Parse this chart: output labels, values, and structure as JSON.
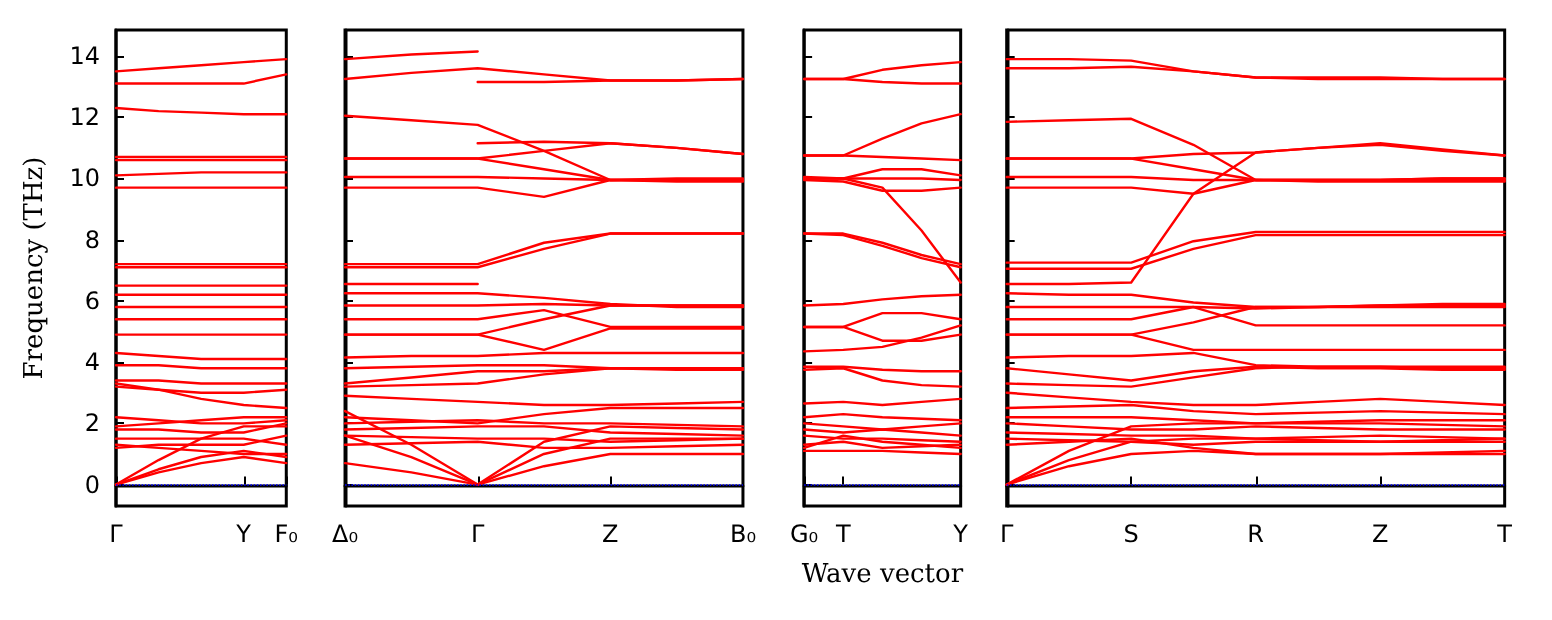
{
  "chart_data": [
    {
      "type": "line",
      "ylabel": "Frequency (THz)",
      "marker": "none",
      "line_style": "solid",
      "ylim": [
        -0.7,
        14.85
      ],
      "yticks": [
        0,
        2,
        4,
        6,
        8,
        10,
        12,
        14
      ],
      "categories": [
        "Γ",
        null,
        null,
        "Y",
        "F₀"
      ],
      "ref_lines": [
        {
          "axis": "y",
          "value": 0,
          "color": "#0000ff",
          "line_style": "dotted"
        }
      ],
      "series": [
        {
          "color": "#ff0000",
          "values": [
            13.5,
            13.6,
            13.7,
            13.8,
            13.9
          ]
        },
        {
          "color": "#ff0000",
          "values": [
            13.1,
            13.1,
            13.1,
            13.1,
            13.4
          ]
        },
        {
          "color": "#ff0000",
          "values": [
            12.3,
            12.2,
            12.15,
            12.1,
            12.1
          ]
        },
        {
          "color": "#ff0000",
          "values": [
            10.7,
            10.7,
            10.7,
            10.7,
            10.7
          ]
        },
        {
          "color": "#ff0000",
          "values": [
            10.6,
            10.6,
            10.6,
            10.6,
            10.6
          ]
        },
        {
          "color": "#ff0000",
          "values": [
            10.1,
            10.15,
            10.2,
            10.2,
            10.2
          ]
        },
        {
          "color": "#ff0000",
          "values": [
            9.7,
            9.7,
            9.7,
            9.7,
            9.7
          ]
        },
        {
          "color": "#ff0000",
          "values": [
            7.2,
            7.2,
            7.2,
            7.2,
            7.2
          ]
        },
        {
          "color": "#ff0000",
          "values": [
            7.1,
            7.1,
            7.1,
            7.1,
            7.1
          ]
        },
        {
          "color": "#ff0000",
          "values": [
            6.5,
            6.5,
            6.5,
            6.5,
            6.5
          ]
        },
        {
          "color": "#ff0000",
          "values": [
            6.2,
            6.2,
            6.2,
            6.2,
            6.2
          ]
        },
        {
          "color": "#ff0000",
          "values": [
            5.8,
            5.8,
            5.8,
            5.8,
            5.8
          ]
        },
        {
          "color": "#ff0000",
          "values": [
            5.4,
            5.4,
            5.4,
            5.4,
            5.4
          ]
        },
        {
          "color": "#ff0000",
          "values": [
            4.9,
            4.9,
            4.9,
            4.9,
            4.9
          ]
        },
        {
          "color": "#ff0000",
          "values": [
            4.3,
            4.2,
            4.1,
            4.1,
            4.1
          ]
        },
        {
          "color": "#ff0000",
          "values": [
            3.9,
            3.9,
            3.8,
            3.8,
            3.8
          ]
        },
        {
          "color": "#ff0000",
          "values": [
            3.4,
            3.4,
            3.3,
            3.3,
            3.3
          ]
        },
        {
          "color": "#ff0000",
          "values": [
            3.3,
            3.1,
            2.8,
            2.6,
            2.5
          ]
        },
        {
          "color": "#ff0000",
          "values": [
            3.2,
            3.1,
            3.0,
            3.0,
            3.1
          ]
        },
        {
          "color": "#ff0000",
          "values": [
            2.2,
            2.1,
            2.0,
            2.0,
            2.1
          ]
        },
        {
          "color": "#ff0000",
          "values": [
            1.9,
            2.0,
            2.1,
            2.2,
            2.2
          ]
        },
        {
          "color": "#ff0000",
          "values": [
            1.8,
            1.8,
            1.7,
            1.7,
            2.0
          ]
        },
        {
          "color": "#ff0000",
          "values": [
            1.5,
            1.5,
            1.5,
            1.5,
            1.3
          ]
        },
        {
          "color": "#ff0000",
          "values": [
            1.3,
            1.2,
            1.1,
            1.0,
            1.0
          ]
        },
        {
          "color": "#ff0000",
          "values": [
            1.2,
            1.3,
            1.3,
            1.3,
            1.6
          ]
        },
        {
          "color": "#ff0000",
          "values": [
            0,
            0.8,
            1.5,
            1.9,
            1.9
          ]
        },
        {
          "color": "#ff0000",
          "values": [
            0,
            0.5,
            0.9,
            1.1,
            0.9
          ]
        },
        {
          "color": "#ff0000",
          "values": [
            0,
            0.4,
            0.7,
            0.9,
            0.7
          ]
        }
      ]
    },
    {
      "type": "line",
      "marker": "none",
      "line_style": "solid",
      "tick_labels": "x",
      "ylim": [
        -0.7,
        14.85
      ],
      "yticks": [
        0,
        2,
        4,
        6,
        8,
        10,
        12,
        14
      ],
      "categories": [
        "Δ₀",
        null,
        "Γ",
        null,
        "Z",
        null,
        "B₀"
      ],
      "ref_lines": [
        {
          "axis": "y",
          "value": 0,
          "color": "#0000ff",
          "line_style": "dotted"
        }
      ],
      "series": [
        {
          "color": "#ff0000",
          "values": [
            13.9,
            14.05,
            14.15,
            null,
            null,
            null,
            null
          ]
        },
        {
          "color": "#ff0000",
          "values": [
            13.25,
            13.45,
            13.6,
            13.4,
            13.2,
            13.2,
            13.25
          ]
        },
        {
          "color": "#ff0000",
          "values": [
            null,
            null,
            13.15,
            13.15,
            13.2,
            13.2,
            13.25
          ]
        },
        {
          "color": "#ff0000",
          "values": [
            12.05,
            11.9,
            11.75,
            10.9,
            9.95,
            9.95,
            9.95
          ]
        },
        {
          "color": "#ff0000",
          "values": [
            null,
            null,
            11.15,
            11.2,
            11.15,
            11.0,
            10.8
          ]
        },
        {
          "color": "#ff0000",
          "values": [
            10.65,
            10.65,
            10.65,
            10.9,
            11.15,
            11.0,
            10.8
          ]
        },
        {
          "color": "#ff0000",
          "values": [
            10.65,
            10.65,
            10.65,
            10.3,
            9.95,
            9.95,
            9.95
          ]
        },
        {
          "color": "#ff0000",
          "values": [
            10.05,
            10.05,
            10.05,
            10.0,
            9.95,
            10.0,
            10.0
          ]
        },
        {
          "color": "#ff0000",
          "values": [
            9.7,
            9.7,
            9.7,
            9.4,
            9.95,
            9.9,
            9.9
          ]
        },
        {
          "color": "#ff0000",
          "values": [
            7.2,
            7.2,
            7.2,
            7.9,
            8.2,
            8.2,
            8.2
          ]
        },
        {
          "color": "#ff0000",
          "values": [
            7.1,
            7.1,
            7.1,
            7.7,
            8.2,
            8.2,
            8.2
          ]
        },
        {
          "color": "#ff0000",
          "values": [
            6.55,
            6.55,
            6.55,
            null,
            null,
            null,
            null
          ]
        },
        {
          "color": "#ff0000",
          "values": [
            6.25,
            6.25,
            6.25,
            6.1,
            5.9,
            5.8,
            5.8
          ]
        },
        {
          "color": "#ff0000",
          "values": [
            5.85,
            5.85,
            5.85,
            5.9,
            5.85,
            5.85,
            5.85
          ]
        },
        {
          "color": "#ff0000",
          "values": [
            5.4,
            5.4,
            5.4,
            5.7,
            5.15,
            5.15,
            5.15
          ]
        },
        {
          "color": "#ff0000",
          "values": [
            4.9,
            4.9,
            4.9,
            5.4,
            5.85,
            5.85,
            5.85
          ]
        },
        {
          "color": "#ff0000",
          "values": [
            4.9,
            4.9,
            4.9,
            4.4,
            5.1,
            5.1,
            5.1
          ]
        },
        {
          "color": "#ff0000",
          "values": [
            4.15,
            4.2,
            4.2,
            4.3,
            4.3,
            4.3,
            4.3
          ]
        },
        {
          "color": "#ff0000",
          "values": [
            3.8,
            3.85,
            3.9,
            3.9,
            3.8,
            3.8,
            3.8
          ]
        },
        {
          "color": "#ff0000",
          "values": [
            3.3,
            3.5,
            3.7,
            3.7,
            3.8,
            3.8,
            3.8
          ]
        },
        {
          "color": "#ff0000",
          "values": [
            3.2,
            3.25,
            3.3,
            3.6,
            3.8,
            3.75,
            3.75
          ]
        },
        {
          "color": "#ff0000",
          "values": [
            2.9,
            2.8,
            2.7,
            2.6,
            2.6,
            2.65,
            2.7
          ]
        },
        {
          "color": "#ff0000",
          "values": [
            2.2,
            2.1,
            2.0,
            2.3,
            2.5,
            2.5,
            2.5
          ]
        },
        {
          "color": "#ff0000",
          "values": [
            2.0,
            2.05,
            2.1,
            2.0,
            2.0,
            1.95,
            1.9
          ]
        },
        {
          "color": "#ff0000",
          "values": [
            1.8,
            1.85,
            1.9,
            1.9,
            1.7,
            1.65,
            1.6
          ]
        },
        {
          "color": "#ff0000",
          "values": [
            1.6,
            1.55,
            1.5,
            1.5,
            1.4,
            1.45,
            1.5
          ]
        },
        {
          "color": "#ff0000",
          "values": [
            1.3,
            1.35,
            1.4,
            1.2,
            1.2,
            1.25,
            1.3
          ]
        },
        {
          "color": "#ff0000",
          "values": [
            0.7,
            0.4,
            0,
            0.6,
            1.0,
            1.0,
            1.0
          ]
        },
        {
          "color": "#ff0000",
          "values": [
            1.6,
            0.9,
            0,
            1.0,
            1.5,
            1.5,
            1.5
          ]
        },
        {
          "color": "#ff0000",
          "values": [
            2.4,
            1.3,
            0,
            1.4,
            1.9,
            1.85,
            1.8
          ]
        }
      ]
    },
    {
      "type": "line",
      "xlabel": "Wave vector",
      "marker": "none",
      "line_style": "solid",
      "tick_labels": "x",
      "ylim": [
        -0.7,
        14.85
      ],
      "yticks": [
        0,
        2,
        4,
        6,
        8,
        10,
        12,
        14
      ],
      "categories": [
        "G₀",
        "T",
        null,
        null,
        "Y"
      ],
      "ref_lines": [
        {
          "axis": "y",
          "value": 0,
          "color": "#0000ff",
          "line_style": "dotted"
        }
      ],
      "series": [
        {
          "color": "#ff0000",
          "values": [
            13.25,
            13.25,
            13.55,
            13.7,
            13.8
          ]
        },
        {
          "color": "#ff0000",
          "values": [
            13.25,
            13.25,
            13.15,
            13.1,
            13.1
          ]
        },
        {
          "color": "#ff0000",
          "values": [
            10.75,
            10.75,
            11.3,
            11.8,
            12.1
          ]
        },
        {
          "color": "#ff0000",
          "values": [
            10.75,
            10.75,
            10.7,
            10.65,
            10.6
          ]
        },
        {
          "color": "#ff0000",
          "values": [
            10.05,
            10.0,
            10.3,
            10.3,
            10.1
          ]
        },
        {
          "color": "#ff0000",
          "values": [
            10.0,
            10.0,
            10.0,
            10.0,
            9.95
          ]
        },
        {
          "color": "#ff0000",
          "values": [
            9.95,
            9.9,
            9.6,
            9.6,
            9.7
          ]
        },
        {
          "color": "#ff0000",
          "values": [
            10.0,
            10.0,
            9.7,
            8.3,
            6.6
          ]
        },
        {
          "color": "#ff0000",
          "values": [
            8.2,
            8.2,
            7.9,
            7.5,
            7.2
          ]
        },
        {
          "color": "#ff0000",
          "values": [
            8.2,
            8.15,
            7.8,
            7.4,
            7.1
          ]
        },
        {
          "color": "#ff0000",
          "values": [
            5.85,
            5.9,
            6.05,
            6.15,
            6.2
          ]
        },
        {
          "color": "#ff0000",
          "values": [
            5.15,
            5.15,
            5.6,
            5.6,
            5.4
          ]
        },
        {
          "color": "#ff0000",
          "values": [
            5.15,
            5.15,
            4.7,
            4.7,
            4.9
          ]
        },
        {
          "color": "#ff0000",
          "values": [
            4.35,
            4.4,
            4.5,
            4.8,
            5.2
          ]
        },
        {
          "color": "#ff0000",
          "values": [
            3.85,
            3.85,
            3.75,
            3.7,
            3.7
          ]
        },
        {
          "color": "#ff0000",
          "values": [
            3.75,
            3.8,
            3.4,
            3.25,
            3.2
          ]
        },
        {
          "color": "#ff0000",
          "values": [
            2.65,
            2.7,
            2.6,
            2.7,
            2.8
          ]
        },
        {
          "color": "#ff0000",
          "values": [
            2.2,
            2.3,
            2.2,
            2.15,
            2.1
          ]
        },
        {
          "color": "#ff0000",
          "values": [
            2.0,
            1.9,
            1.8,
            1.9,
            2.0
          ]
        },
        {
          "color": "#ff0000",
          "values": [
            1.8,
            1.7,
            1.8,
            1.7,
            1.6
          ]
        },
        {
          "color": "#ff0000",
          "values": [
            1.6,
            1.5,
            1.5,
            1.45,
            1.4
          ]
        },
        {
          "color": "#ff0000",
          "values": [
            1.3,
            1.4,
            1.2,
            1.25,
            1.3
          ]
        },
        {
          "color": "#ff0000",
          "values": [
            1.1,
            1.1,
            1.1,
            1.05,
            1.0
          ]
        },
        {
          "color": "#ff0000",
          "values": [
            1.2,
            1.6,
            1.4,
            1.3,
            1.2
          ]
        }
      ]
    },
    {
      "type": "line",
      "marker": "none",
      "line_style": "solid",
      "tick_labels": "x",
      "ylim": [
        -0.7,
        14.85
      ],
      "yticks": [
        0,
        2,
        4,
        6,
        8,
        10,
        12,
        14
      ],
      "categories": [
        "Γ",
        null,
        "S",
        null,
        "R",
        null,
        "Z",
        null,
        "T"
      ],
      "ref_lines": [
        {
          "axis": "y",
          "value": 0,
          "color": "#0000ff",
          "line_style": "dotted"
        }
      ],
      "series": [
        {
          "color": "#ff0000",
          "values": [
            13.9,
            13.9,
            13.85,
            13.5,
            13.3,
            13.3,
            13.3,
            13.25,
            13.25
          ]
        },
        {
          "color": "#ff0000",
          "values": [
            13.6,
            13.6,
            13.65,
            13.5,
            13.3,
            13.25,
            13.25,
            13.25,
            13.25
          ]
        },
        {
          "color": "#ff0000",
          "values": [
            11.85,
            11.9,
            11.95,
            11.1,
            9.95,
            9.95,
            9.95,
            10.0,
            10.0
          ]
        },
        {
          "color": "#ff0000",
          "values": [
            10.65,
            10.65,
            10.65,
            10.3,
            9.95,
            9.95,
            9.95,
            10.0,
            10.0
          ]
        },
        {
          "color": "#ff0000",
          "values": [
            10.05,
            10.05,
            10.05,
            9.95,
            9.95,
            9.95,
            9.95,
            9.95,
            9.95
          ]
        },
        {
          "color": "#ff0000",
          "values": [
            9.7,
            9.7,
            9.7,
            9.5,
            9.95,
            9.9,
            9.9,
            9.9,
            9.9
          ]
        },
        {
          "color": "#ff0000",
          "values": [
            10.65,
            10.65,
            10.65,
            10.8,
            10.85,
            11.0,
            11.15,
            10.95,
            10.75
          ]
        },
        {
          "color": "#ff0000",
          "values": [
            7.25,
            7.25,
            7.25,
            7.95,
            8.25,
            8.25,
            8.25,
            8.25,
            8.25
          ]
        },
        {
          "color": "#ff0000",
          "values": [
            7.05,
            7.05,
            7.05,
            7.7,
            8.15,
            8.15,
            8.15,
            8.15,
            8.15
          ]
        },
        {
          "color": "#ff0000",
          "values": [
            6.55,
            6.55,
            6.6,
            9.5,
            10.85,
            11.0,
            11.1,
            10.9,
            10.75
          ]
        },
        {
          "color": "#ff0000",
          "values": [
            6.25,
            6.2,
            6.2,
            5.95,
            5.8,
            5.8,
            5.85,
            5.85,
            5.85
          ]
        },
        {
          "color": "#ff0000",
          "values": [
            5.8,
            5.8,
            5.8,
            5.8,
            5.75,
            5.8,
            5.85,
            5.9,
            5.9
          ]
        },
        {
          "color": "#ff0000",
          "values": [
            5.4,
            5.4,
            5.4,
            5.8,
            5.2,
            5.2,
            5.2,
            5.2,
            5.2
          ]
        },
        {
          "color": "#ff0000",
          "values": [
            4.9,
            4.9,
            4.9,
            5.3,
            5.8,
            5.8,
            5.8,
            5.8,
            5.8
          ]
        },
        {
          "color": "#ff0000",
          "values": [
            4.9,
            4.9,
            4.9,
            4.4,
            4.4,
            4.4,
            4.4,
            4.4,
            4.4
          ]
        },
        {
          "color": "#ff0000",
          "values": [
            4.15,
            4.2,
            4.2,
            4.3,
            3.9,
            3.85,
            3.85,
            3.8,
            3.8
          ]
        },
        {
          "color": "#ff0000",
          "values": [
            3.8,
            3.6,
            3.4,
            3.7,
            3.85,
            3.8,
            3.8,
            3.75,
            3.75
          ]
        },
        {
          "color": "#ff0000",
          "values": [
            3.3,
            3.25,
            3.2,
            3.5,
            3.8,
            3.85,
            3.85,
            3.85,
            3.85
          ]
        },
        {
          "color": "#ff0000",
          "values": [
            3.0,
            2.85,
            2.7,
            2.6,
            2.6,
            2.7,
            2.8,
            2.7,
            2.6
          ]
        },
        {
          "color": "#ff0000",
          "values": [
            2.5,
            2.55,
            2.6,
            2.4,
            2.3,
            2.35,
            2.4,
            2.35,
            2.3
          ]
        },
        {
          "color": "#ff0000",
          "values": [
            2.2,
            2.2,
            2.2,
            2.1,
            2.0,
            2.05,
            2.1,
            2.1,
            2.1
          ]
        },
        {
          "color": "#ff0000",
          "values": [
            2.0,
            1.9,
            1.8,
            1.8,
            1.9,
            1.85,
            1.8,
            1.8,
            1.8
          ]
        },
        {
          "color": "#ff0000",
          "values": [
            1.7,
            1.65,
            1.6,
            1.6,
            1.5,
            1.55,
            1.6,
            1.55,
            1.5
          ]
        },
        {
          "color": "#ff0000",
          "values": [
            1.5,
            1.45,
            1.4,
            1.3,
            1.4,
            1.4,
            1.4,
            1.4,
            1.4
          ]
        },
        {
          "color": "#ff0000",
          "values": [
            1.3,
            1.4,
            1.5,
            1.2,
            1.0,
            1.0,
            1.0,
            1.05,
            1.1
          ]
        },
        {
          "color": "#ff0000",
          "values": [
            0,
            0.6,
            1.0,
            1.1,
            1.0,
            1.0,
            1.0,
            1.0,
            1.0
          ]
        },
        {
          "color": "#ff0000",
          "values": [
            0,
            0.8,
            1.4,
            1.5,
            1.5,
            1.45,
            1.4,
            1.45,
            1.5
          ]
        },
        {
          "color": "#ff0000",
          "values": [
            0,
            1.1,
            1.9,
            2.0,
            2.0,
            2.0,
            2.0,
            1.95,
            1.9
          ]
        }
      ]
    }
  ]
}
